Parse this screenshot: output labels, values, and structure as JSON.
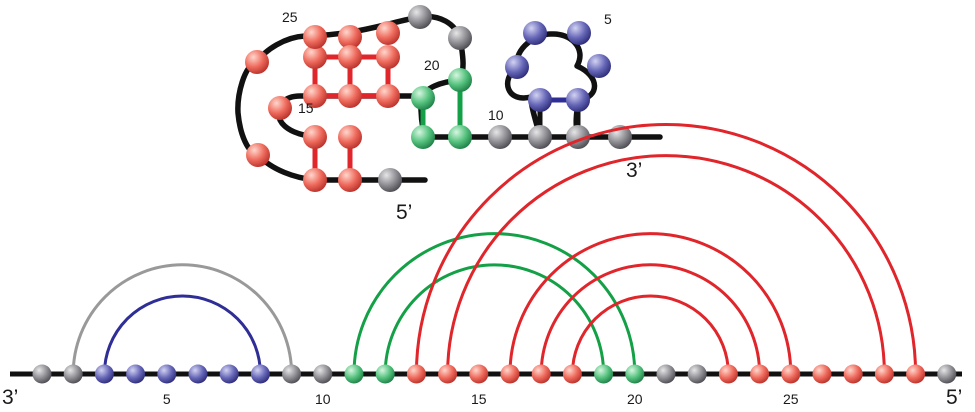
{
  "colors": {
    "backbone": "#111111",
    "grey_base": "#8f8f94",
    "blue_base": "#6767b8",
    "red_base": "#ee6a5c",
    "green_base": "#55c27e",
    "arc_grey": "#999999",
    "arc_blue": "#2e2e96",
    "arc_red": "#e0252b",
    "arc_green": "#14a046"
  },
  "structure": {
    "labels": {
      "n5": "5",
      "n10": "10",
      "n15": "15",
      "n20": "20",
      "n25": "25",
      "end5": "5’",
      "end3": "3’"
    }
  },
  "arc_diagram": {
    "end_left": "3’",
    "end_right": "5’",
    "index_labels": [
      "5",
      "10",
      "15",
      "20",
      "25"
    ],
    "nucleotides": [
      "grey",
      "grey",
      "blue",
      "blue",
      "blue",
      "blue",
      "blue",
      "blue",
      "grey",
      "grey",
      "green",
      "green",
      "red",
      "red",
      "red",
      "red",
      "red",
      "red",
      "green",
      "green",
      "grey",
      "grey",
      "red",
      "red",
      "red",
      "red",
      "red",
      "red",
      "red",
      "grey"
    ],
    "arcs": [
      {
        "i": 1,
        "j": 8,
        "color": "grey"
      },
      {
        "i": 2,
        "j": 7,
        "color": "blue"
      },
      {
        "i": 10,
        "j": 19,
        "color": "green"
      },
      {
        "i": 11,
        "j": 18,
        "color": "green"
      },
      {
        "i": 12,
        "j": 28,
        "color": "red"
      },
      {
        "i": 13,
        "j": 27,
        "color": "red"
      },
      {
        "i": 15,
        "j": 24,
        "color": "red"
      },
      {
        "i": 16,
        "j": 23,
        "color": "red"
      },
      {
        "i": 17,
        "j": 22,
        "color": "red"
      }
    ]
  }
}
